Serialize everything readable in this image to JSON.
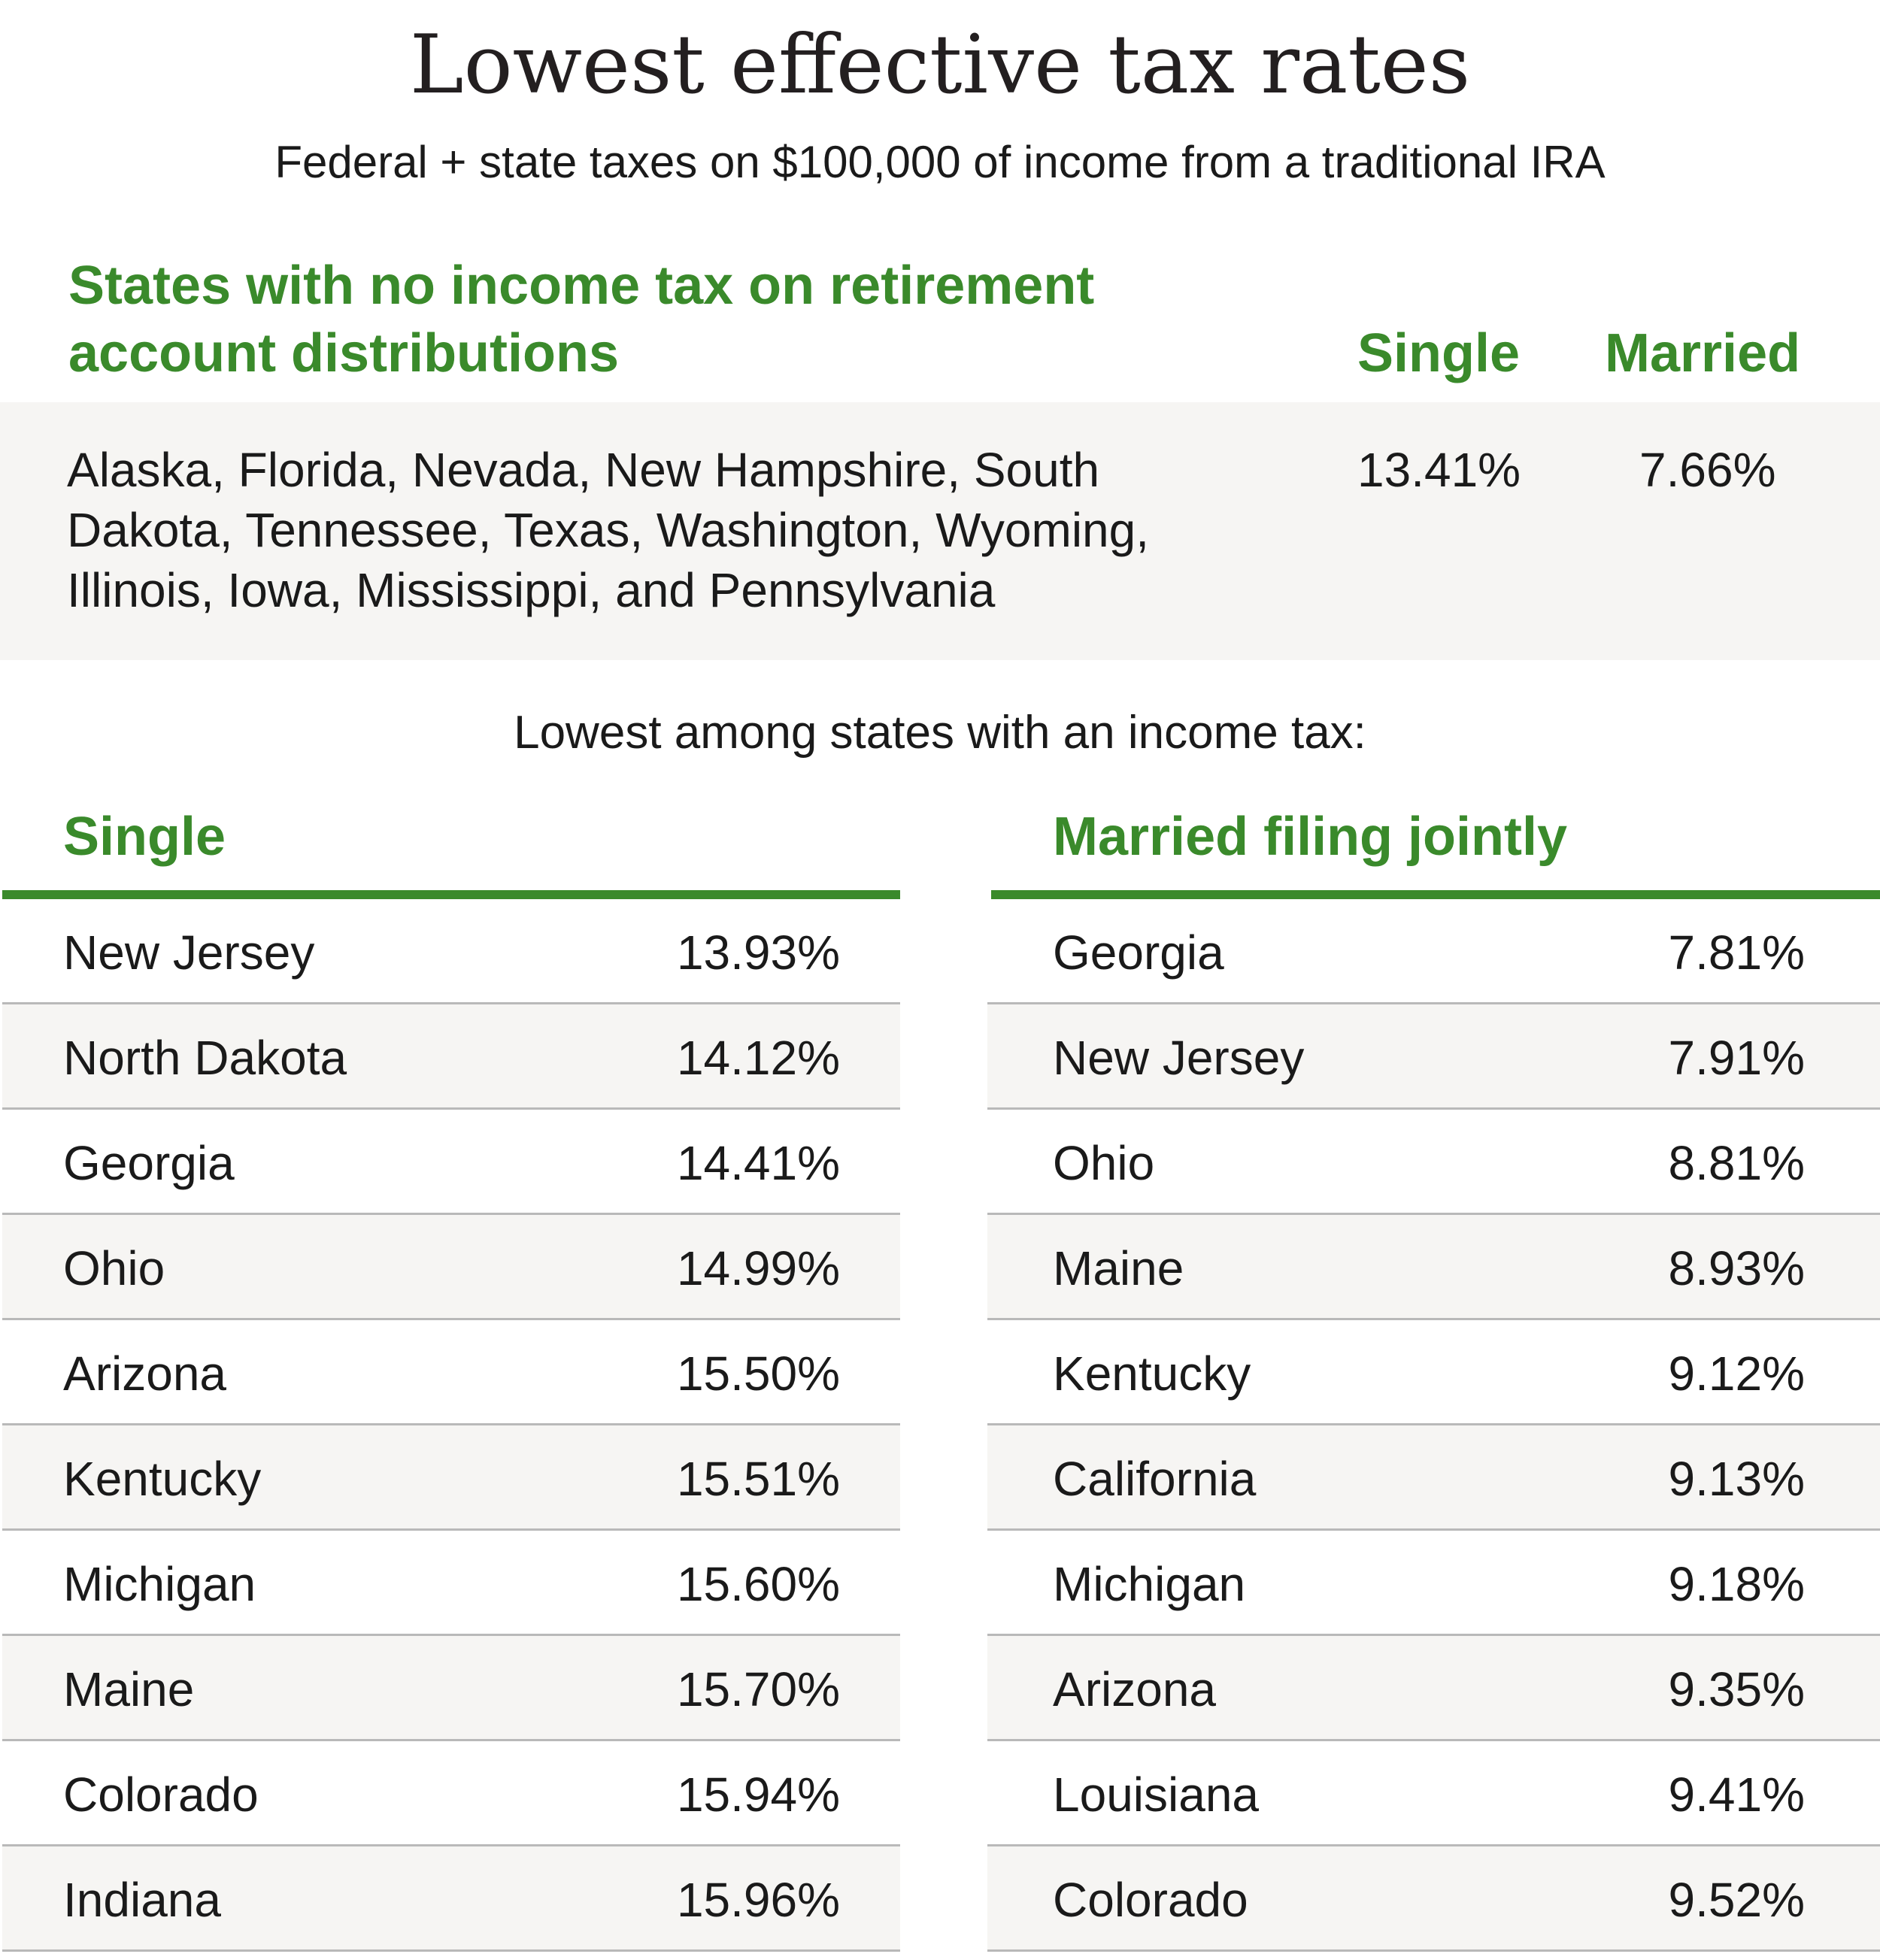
{
  "title": "Lowest effective tax rates",
  "subtitle": "Federal + state taxes on $100,000 of income from a traditional IRA",
  "no_tax": {
    "heading": "States with no income tax on retirement account distributions",
    "single_label": "Single",
    "married_label": "Married",
    "states": "Alaska, Florida, Nevada, New Hampshire, South Dakota, Tennessee, Texas, Washington, Wyoming, Illinois, Iowa, Mississippi, and Pennsylvania",
    "single_rate": "13.41%",
    "married_rate": "7.66%"
  },
  "among_label": "Lowest among states with an income tax:",
  "single_table": {
    "heading": "Single",
    "rows": [
      {
        "state": "New Jersey",
        "rate": "13.93%"
      },
      {
        "state": "North Dakota",
        "rate": "14.12%"
      },
      {
        "state": "Georgia",
        "rate": "14.41%"
      },
      {
        "state": "Ohio",
        "rate": "14.99%"
      },
      {
        "state": "Arizona",
        "rate": "15.50%"
      },
      {
        "state": "Kentucky",
        "rate": "15.51%"
      },
      {
        "state": "Michigan",
        "rate": "15.60%"
      },
      {
        "state": "Maine",
        "rate": "15.70%"
      },
      {
        "state": "Colorado",
        "rate": "15.94%"
      },
      {
        "state": "Indiana",
        "rate": "15.96%"
      }
    ]
  },
  "married_table": {
    "heading": "Married filing jointly",
    "rows": [
      {
        "state": "Georgia",
        "rate": "7.81%"
      },
      {
        "state": "New Jersey",
        "rate": "7.91%"
      },
      {
        "state": "Ohio",
        "rate": "8.81%"
      },
      {
        "state": "Maine",
        "rate": "8.93%"
      },
      {
        "state": "Kentucky",
        "rate": "9.12%"
      },
      {
        "state": "California",
        "rate": "9.13%"
      },
      {
        "state": "Michigan",
        "rate": "9.18%"
      },
      {
        "state": "Arizona",
        "rate": "9.35%"
      },
      {
        "state": "Louisiana",
        "rate": "9.41%"
      },
      {
        "state": "Colorado",
        "rate": "9.52%"
      }
    ]
  },
  "colors": {
    "accent": "#3a8a2b",
    "band": "#f6f5f3",
    "divider": "#b9b9b9"
  }
}
